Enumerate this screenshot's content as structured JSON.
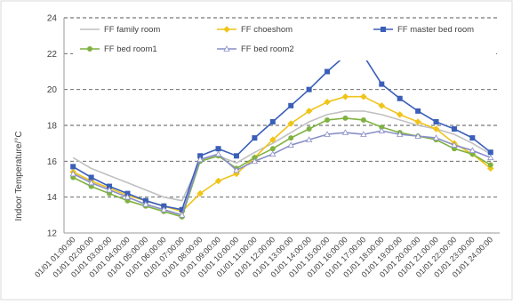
{
  "chart_data": {
    "type": "line",
    "ylabel": "Indoor Temperature/°C",
    "xlabel": "",
    "ylim": [
      12,
      24
    ],
    "yticks": [
      12,
      14,
      16,
      18,
      20,
      22,
      24
    ],
    "grid": "horizontal-dashed",
    "legend": "top-inside",
    "categories": [
      "01/01 01:00:00",
      "01/01 02:00:00",
      "01/01 03:00:00",
      "01/01 04:00:00",
      "01/01 05:00:00",
      "01/01 06:00:00",
      "01/01 07:00:00",
      "01/01 08:00:00",
      "01/01 09:00:00",
      "01/01 10:00:00",
      "01/01 11:00:00",
      "01/01 12:00:00",
      "01/01 13:00:00",
      "01/01 14:00:00",
      "01/01 15:00:00",
      "01/01 16:00:00",
      "01/01 17:00:00",
      "01/01 18:00:00",
      "01/01 19:00:00",
      "01/01 20:00:00",
      "01/01 21:00:00",
      "01/01 22:00:00",
      "01/01 23:00:00",
      "01/01 24:00:00"
    ],
    "series": [
      {
        "name": "FF family room",
        "color": "#c0c0c0",
        "marker": "none",
        "values": [
          16.2,
          15.6,
          15.2,
          14.8,
          14.4,
          14.0,
          13.8,
          16.0,
          16.3,
          15.9,
          16.5,
          17.0,
          17.6,
          18.2,
          18.6,
          18.8,
          18.8,
          18.6,
          18.3,
          18.0,
          17.8,
          17.5,
          17.0,
          16.4
        ]
      },
      {
        "name": "FF choeshom",
        "color": "#f0c419",
        "marker": "diamond",
        "values": [
          15.4,
          14.9,
          14.5,
          14.1,
          13.8,
          13.5,
          13.2,
          14.2,
          14.9,
          15.3,
          16.2,
          17.2,
          18.1,
          18.8,
          19.3,
          19.6,
          19.6,
          19.1,
          18.6,
          18.2,
          17.8,
          17.0,
          16.4,
          15.6
        ]
      },
      {
        "name": "FF master bed room",
        "color": "#3a5fb8",
        "marker": "square",
        "values": [
          15.7,
          15.1,
          14.6,
          14.2,
          13.8,
          13.5,
          13.3,
          16.3,
          16.7,
          16.3,
          17.3,
          18.2,
          19.1,
          20.0,
          21.0,
          21.9,
          21.9,
          20.3,
          19.5,
          18.8,
          18.2,
          17.8,
          17.3,
          16.5
        ]
      },
      {
        "name": "FF bed room1",
        "color": "#7fb241",
        "marker": "circle",
        "values": [
          15.1,
          14.6,
          14.2,
          13.8,
          13.5,
          13.2,
          12.9,
          16.0,
          16.3,
          15.6,
          16.2,
          16.7,
          17.3,
          17.8,
          18.3,
          18.4,
          18.3,
          17.9,
          17.6,
          17.4,
          17.2,
          16.7,
          16.4,
          15.8
        ]
      },
      {
        "name": "FF bed room2",
        "color": "#8a8fc8",
        "marker": "triangle",
        "values": [
          15.3,
          14.8,
          14.4,
          14.0,
          13.6,
          13.3,
          13.0,
          16.1,
          16.4,
          15.5,
          16.0,
          16.4,
          16.9,
          17.2,
          17.5,
          17.6,
          17.5,
          17.7,
          17.5,
          17.4,
          17.3,
          16.9,
          16.6,
          16.2
        ]
      }
    ]
  }
}
